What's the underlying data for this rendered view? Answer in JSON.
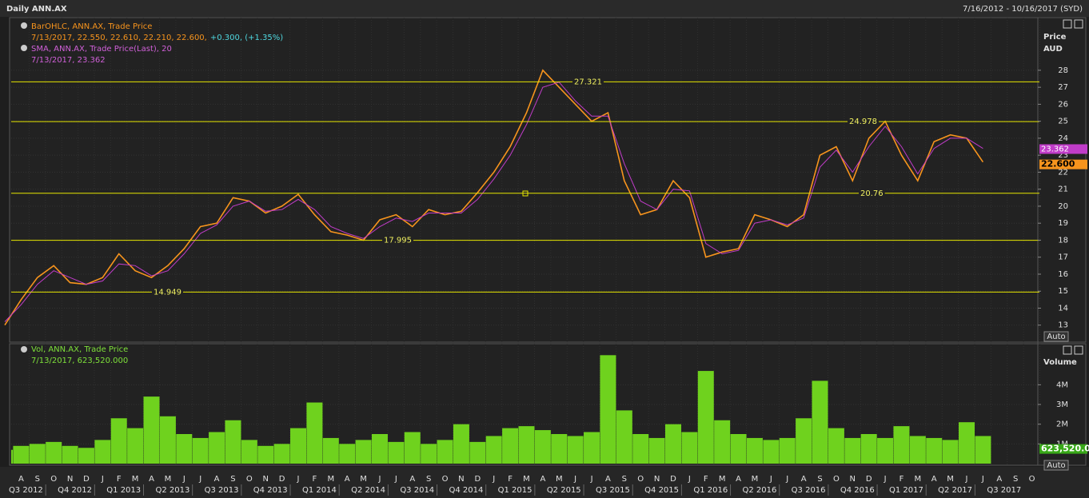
{
  "header": {
    "title": "Daily ANN.AX",
    "range": "7/16/2012 - 10/16/2017 (SYD)"
  },
  "chart_data": [
    {
      "type": "line",
      "axis_label": "Price",
      "axis_unit": "AUD",
      "scale_button": "Auto",
      "categories": [
        null,
        "A",
        "S",
        "O",
        "N",
        "D",
        "J",
        "F",
        "M",
        "A",
        "M",
        "J",
        "J",
        "A",
        "S",
        "O",
        "N",
        "D",
        "J",
        "F",
        "M",
        "A",
        "M",
        "J",
        "J",
        "A",
        "S",
        "O",
        "N",
        "D",
        "J",
        "F",
        "M",
        "A",
        "M",
        "J",
        "J",
        "A",
        "S",
        "O",
        "N",
        "D",
        "J",
        "F",
        "M",
        "A",
        "M",
        "J",
        "J",
        "A",
        "S",
        "O",
        "N",
        "D",
        "J",
        "F",
        "M",
        "A",
        "M",
        "J",
        "J",
        "A",
        "S",
        "O"
      ],
      "quarters": [
        "Q3 2012",
        "Q4 2012",
        "Q1 2013",
        "Q2 2013",
        "Q3 2013",
        "Q4 2013",
        "Q1 2014",
        "Q2 2014",
        "Q3 2014",
        "Q4 2014",
        "Q1 2015",
        "Q2 2015",
        "Q3 2015",
        "Q4 2015",
        "Q1 2016",
        "Q2 2016",
        "Q3 2016",
        "Q4 2016",
        "Q1 2017",
        "Q2 2017",
        "Q3 2017"
      ],
      "series": [
        {
          "name": "BarOHLC, ANN.AX, Trade Price",
          "legend_values": "7/13/2017, 22.550, 22.610, 22.210, 22.600,",
          "legend_change": "+0.300, (+1.35%)",
          "color": "#f7941d",
          "last": {
            "value": 22.6,
            "label": "22.600"
          },
          "values": [
            13.0,
            14.5,
            15.8,
            16.5,
            15.5,
            15.4,
            15.8,
            17.2,
            16.2,
            15.8,
            16.5,
            17.5,
            18.8,
            19.0,
            20.5,
            20.3,
            19.6,
            20.0,
            20.7,
            19.5,
            18.5,
            18.3,
            18.0,
            19.2,
            19.5,
            18.8,
            19.8,
            19.5,
            19.7,
            20.8,
            22.0,
            23.5,
            25.5,
            28.0,
            27.0,
            26.0,
            25.0,
            25.5,
            21.5,
            19.5,
            19.8,
            21.5,
            20.5,
            17.0,
            17.3,
            17.5,
            19.5,
            19.2,
            18.8,
            19.5,
            23.0,
            23.5,
            21.5,
            24.0,
            25.0,
            23.0,
            21.5,
            23.8,
            24.2,
            24.0,
            22.6,
            null,
            null,
            null
          ]
        },
        {
          "name": "SMA, ANN.AX, Trade Price(Last), 20",
          "legend_values": "7/13/2017, 23.362",
          "color": "#c03cc8",
          "last": 23.362,
          "values": [
            13.2,
            14.2,
            15.4,
            16.2,
            15.8,
            15.4,
            15.6,
            16.6,
            16.5,
            15.9,
            16.2,
            17.2,
            18.4,
            18.9,
            20.0,
            20.3,
            19.7,
            19.8,
            20.4,
            19.8,
            18.8,
            18.4,
            18.1,
            18.8,
            19.3,
            19.1,
            19.6,
            19.6,
            19.6,
            20.4,
            21.6,
            23.0,
            24.8,
            27.0,
            27.3,
            26.2,
            25.3,
            25.3,
            22.5,
            20.3,
            19.8,
            21.0,
            20.9,
            17.8,
            17.2,
            17.4,
            19.0,
            19.2,
            18.9,
            19.3,
            22.3,
            23.3,
            22.0,
            23.5,
            24.7,
            23.5,
            21.9,
            23.4,
            24.0,
            24.0,
            23.4,
            null,
            null,
            null
          ]
        }
      ],
      "levels": [
        27.321,
        24.978,
        20.76,
        17.995,
        14.949
      ],
      "ylim": [
        12,
        31.1
      ],
      "yticks": [
        13,
        14,
        15,
        16,
        17,
        18,
        19,
        20,
        21,
        22,
        23,
        24,
        25,
        26,
        27,
        28
      ],
      "grid": true
    },
    {
      "type": "bar",
      "axis_label": "Volume",
      "scale_button": "Auto",
      "legend_name": "Vol, ANN.AX, Trade Price",
      "legend_values": "7/13/2017, 623,520.000",
      "color": "#6fd21e",
      "last": {
        "value": 623520,
        "label": "623,520.00"
      },
      "values": [
        700000,
        900000,
        1000000,
        1100000,
        900000,
        800000,
        1200000,
        2300000,
        1800000,
        3400000,
        2400000,
        1500000,
        1300000,
        1600000,
        2200000,
        1200000,
        900000,
        1000000,
        1800000,
        3100000,
        1300000,
        1000000,
        1200000,
        1500000,
        1100000,
        1600000,
        1000000,
        1200000,
        2000000,
        1100000,
        1400000,
        1800000,
        1900000,
        1700000,
        1500000,
        1400000,
        1600000,
        5500000,
        2700000,
        1500000,
        1300000,
        2000000,
        1600000,
        4700000,
        2200000,
        1500000,
        1300000,
        1200000,
        1300000,
        2300000,
        4200000,
        1800000,
        1300000,
        1500000,
        1300000,
        1900000,
        1400000,
        1300000,
        1200000,
        2100000,
        1400000,
        null,
        null,
        null
      ],
      "ylim": [
        0,
        6000000
      ],
      "yticks": [
        {
          "value": 1000000,
          "label": "1M"
        },
        {
          "value": 2000000,
          "label": "2M"
        },
        {
          "value": 3000000,
          "label": "3M"
        },
        {
          "value": 4000000,
          "label": "4M"
        }
      ],
      "grid": true
    }
  ]
}
